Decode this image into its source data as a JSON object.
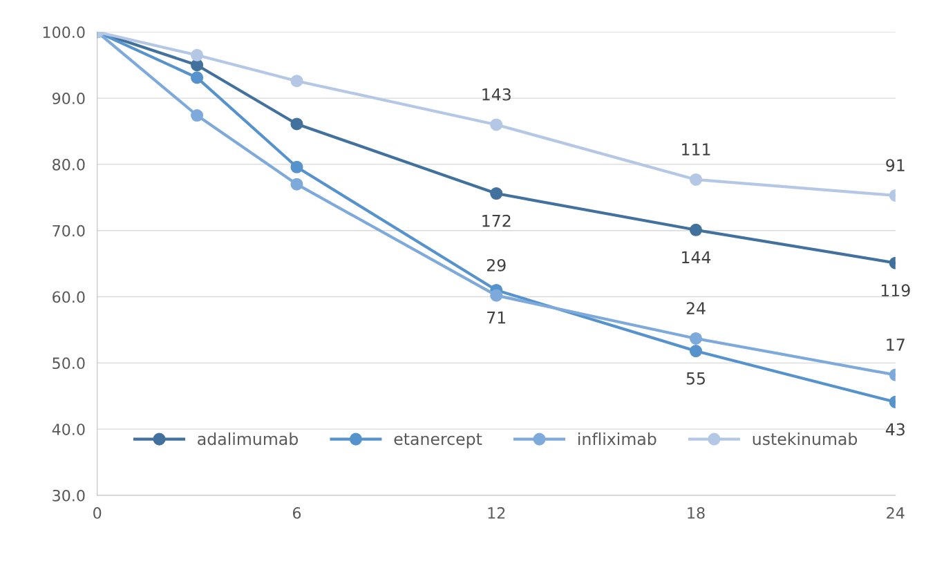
{
  "chart_data": {
    "type": "line",
    "x": [
      0,
      3,
      6,
      12,
      18,
      24
    ],
    "series": [
      {
        "name": "adalimumab",
        "color": "#41719c",
        "values": [
          100.0,
          95.0,
          86.1,
          75.6,
          70.1,
          65.1
        ]
      },
      {
        "name": "etanercept",
        "color": "#5693cc",
        "values": [
          100.0,
          93.1,
          79.6,
          61.0,
          51.8,
          44.1
        ]
      },
      {
        "name": "infliximab",
        "color": "#7eaadb",
        "values": [
          100.0,
          87.4,
          77.0,
          60.2,
          53.7,
          48.2
        ]
      },
      {
        "name": "ustekinumab",
        "color": "#b4c8e6",
        "values": [
          100.0,
          96.5,
          92.6,
          86.0,
          77.7,
          75.3
        ]
      }
    ],
    "annotations": [
      {
        "text": "172",
        "x": 12,
        "y": 75.6
      },
      {
        "text": "144",
        "x": 18,
        "y": 70.1
      },
      {
        "text": "119",
        "x": 24,
        "y": 65.1
      },
      {
        "text": "71",
        "x": 12,
        "y": 61.0
      },
      {
        "text": "55",
        "x": 18,
        "y": 51.8
      },
      {
        "text": "43",
        "x": 24,
        "y": 44.1
      },
      {
        "text": "29",
        "x": 12,
        "y": 60.2
      },
      {
        "text": "24",
        "x": 18,
        "y": 53.7
      },
      {
        "text": "17",
        "x": 24,
        "y": 48.2
      },
      {
        "text": "143",
        "x": 12,
        "y": 86.0
      },
      {
        "text": "111",
        "x": 18,
        "y": 77.7
      },
      {
        "text": "91",
        "x": 24,
        "y": 75.3
      }
    ],
    "xlim": [
      0,
      24
    ],
    "xticks": [
      0,
      6,
      12,
      18,
      24
    ],
    "ylim": [
      30,
      100
    ],
    "yticks": [
      {
        "value": 30,
        "label": "30.0"
      },
      {
        "value": 40,
        "label": "40.0"
      },
      {
        "value": 50,
        "label": "50.0"
      },
      {
        "value": 60,
        "label": "60.0"
      },
      {
        "value": 70,
        "label": "70.0"
      },
      {
        "value": 80,
        "label": "80.0"
      },
      {
        "value": 90,
        "label": "90.0"
      },
      {
        "value": 100,
        "label": "100.0"
      }
    ],
    "grid": "y",
    "legend": "bottom",
    "marker": "circle",
    "line_style": "solid"
  }
}
